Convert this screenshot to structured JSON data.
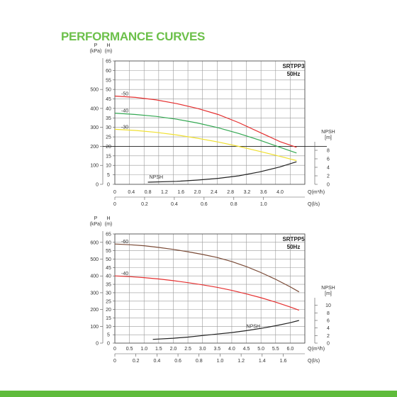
{
  "page_title": "PERFORMANCE CURVES",
  "colors": {
    "title": "#6cc04a",
    "bar": "#5fbb3b",
    "red": "#e53030",
    "green": "#33a852",
    "yellow": "#f0e030",
    "black": "#222222",
    "brown": "#7a4a36"
  },
  "chart_data": [
    {
      "type": "line",
      "model": "SRTPP3",
      "frequency": "50Hz",
      "y_label_left_1": "P",
      "y_unit_left_1": "(kPa)",
      "y_label_left_2": "H",
      "y_unit_left_2": "(m)",
      "x_label": "Q(m³/h)",
      "x2_label": "Q(l/s)",
      "npsh_label_1": "NPSH",
      "npsh_label_2": "[m]",
      "h_ticks": [
        "0",
        "5",
        "10",
        "15",
        "20",
        "25",
        "30",
        "35",
        "40",
        "45",
        "50",
        "55",
        "60",
        "65"
      ],
      "p_ticks": [
        "0",
        "100",
        "200",
        "300",
        "400",
        "500"
      ],
      "x_ticks": [
        "0",
        "0.4",
        "0.8",
        "1.2",
        "1.6",
        "2.0",
        "2.4",
        "2.8",
        "3.2",
        "3.6",
        "4.0"
      ],
      "x2_ticks": [
        "0",
        "0.2",
        "0.4",
        "0.6",
        "0.8",
        "1.0"
      ],
      "npsh_ticks": [
        "0",
        "2",
        "4",
        "6",
        "8"
      ],
      "xlim": [
        0,
        4.6
      ],
      "hlim": [
        0,
        65
      ],
      "npsh_lim": [
        0,
        10
      ],
      "series": [
        {
          "name": "-50",
          "color": "#e53030",
          "x": [
            0,
            0.5,
            1.0,
            1.5,
            2.0,
            2.5,
            3.0,
            3.5,
            4.0,
            4.4
          ],
          "y": [
            46.5,
            45.8,
            44.5,
            42.5,
            40.0,
            36.8,
            32.5,
            27.5,
            22.5,
            19.5
          ]
        },
        {
          "name": "-40",
          "color": "#33a852",
          "x": [
            0,
            0.5,
            1.0,
            1.5,
            2.0,
            2.5,
            3.0,
            3.5,
            4.0,
            4.4
          ],
          "y": [
            37.5,
            36.8,
            35.8,
            34.3,
            32.3,
            29.8,
            26.8,
            23.3,
            19.5,
            16.5
          ]
        },
        {
          "name": "-30",
          "color": "#f0e030",
          "x": [
            0,
            0.5,
            1.0,
            1.5,
            2.0,
            2.5,
            3.0,
            3.5,
            4.0,
            4.4
          ],
          "y": [
            29.0,
            28.4,
            27.4,
            26.0,
            24.3,
            22.3,
            20.0,
            17.4,
            14.7,
            12.5
          ]
        }
      ],
      "npsh_series": {
        "name": "NPSH",
        "color": "#222222",
        "x": [
          0.8,
          1.5,
          2.0,
          2.5,
          3.0,
          3.5,
          4.0,
          4.4
        ],
        "y": [
          0.5,
          0.7,
          1.0,
          1.4,
          2.0,
          2.9,
          4.1,
          5.3
        ]
      },
      "reference_line_h": 20
    },
    {
      "type": "line",
      "model": "SRTPP5",
      "frequency": "50Hz",
      "y_label_left_1": "P",
      "y_unit_left_1": "(kPa)",
      "y_label_left_2": "H",
      "y_unit_left_2": "(m)",
      "x_label": "Q(m³/h)",
      "x2_label": "Q(l/s)",
      "npsh_label_1": "NPSH",
      "npsh_label_2": "[m]",
      "h_ticks": [
        "0",
        "5",
        "10",
        "15",
        "20",
        "25",
        "30",
        "35",
        "40",
        "45",
        "50",
        "55",
        "60",
        "65"
      ],
      "p_ticks": [
        "0",
        "100",
        "200",
        "300",
        "400",
        "500",
        "600"
      ],
      "x_ticks": [
        "0",
        "0.5",
        "1.0",
        "1.5",
        "2.0",
        "2.5",
        "3.0",
        "3.5",
        "4.0",
        "4.5",
        "5.0",
        "5.5",
        "6.0"
      ],
      "x2_ticks": [
        "0",
        "0.2",
        "0.4",
        "0.6",
        "0.8",
        "1.0",
        "1.2",
        "1.4",
        "1.6"
      ],
      "npsh_ticks": [
        "0",
        "2",
        "4",
        "6",
        "8",
        "10"
      ],
      "xlim": [
        0,
        6.5
      ],
      "hlim": [
        0,
        65
      ],
      "npsh_lim": [
        0,
        12
      ],
      "series": [
        {
          "name": "-60",
          "color": "#7a4a36",
          "x": [
            0,
            0.5,
            1.0,
            1.5,
            2.0,
            2.5,
            3.0,
            3.5,
            4.0,
            4.5,
            5.0,
            5.5,
            6.0,
            6.3
          ],
          "y": [
            59.0,
            58.6,
            58.0,
            57.0,
            55.8,
            54.4,
            52.8,
            51.0,
            48.6,
            45.6,
            42.0,
            38.0,
            33.5,
            30.5
          ]
        },
        {
          "name": "-40",
          "color": "#e53030",
          "x": [
            0,
            0.5,
            1.0,
            1.5,
            2.0,
            2.5,
            3.0,
            3.5,
            4.0,
            4.5,
            5.0,
            5.5,
            6.0,
            6.3
          ],
          "y": [
            40.0,
            39.6,
            39.0,
            38.2,
            37.2,
            36.0,
            34.7,
            33.2,
            31.4,
            29.3,
            27.0,
            24.4,
            21.5,
            19.6
          ]
        }
      ],
      "npsh_series": {
        "name": "NPSH",
        "color": "#222222",
        "x": [
          1.3,
          2.0,
          2.5,
          3.0,
          3.5,
          4.0,
          4.5,
          5.0,
          5.5,
          6.0,
          6.3
        ],
        "y": [
          1.0,
          1.3,
          1.6,
          2.0,
          2.4,
          2.8,
          3.3,
          3.9,
          4.6,
          5.4,
          6.0
        ]
      }
    }
  ]
}
